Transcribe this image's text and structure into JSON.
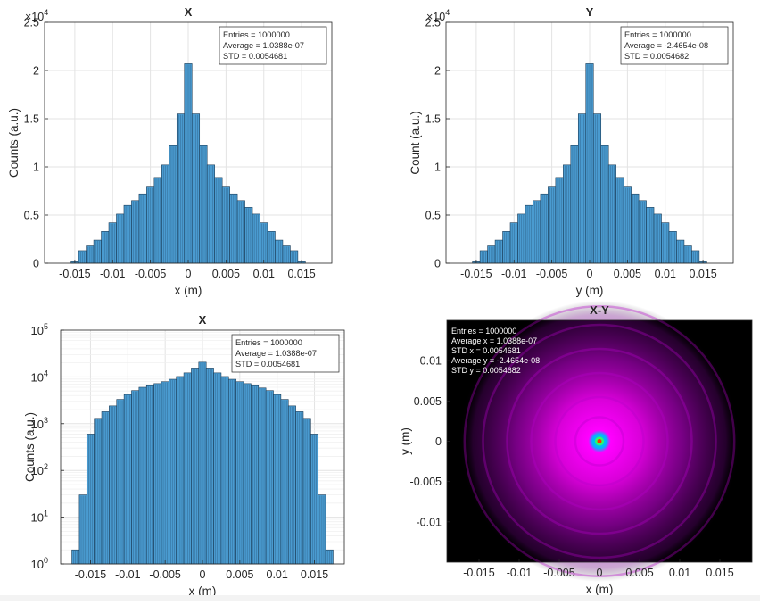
{
  "colors": {
    "bar_fill": "#4a9bd0",
    "bar_edge": "#1a3a55",
    "grid": "#e3e3e3",
    "axis": "#262626",
    "heat_bg": "#000000",
    "heat_halo": "#b400c8",
    "heat_core": "#ff00ff",
    "heat_center_cyan": "#00b4ff",
    "heat_center_green": "#30ff60",
    "heat_center_red": "#ff3000"
  },
  "chart_data": [
    {
      "type": "bar",
      "title": "X",
      "xlabel": "x (m)",
      "ylabel": "Counts (a.u.)",
      "exponent_label": "×10",
      "exponent_power": "4",
      "xlim": [
        -0.019,
        0.019
      ],
      "ylim": [
        0,
        25000
      ],
      "yscale": "linear",
      "grid": true,
      "xticks": [
        -0.015,
        -0.01,
        -0.005,
        0,
        0.005,
        0.01,
        0.015
      ],
      "xtick_labels": [
        "-0.015",
        "-0.01",
        "-0.005",
        "0",
        "0.005",
        "0.01",
        "0.015"
      ],
      "yticks": [
        0,
        5000,
        10000,
        15000,
        20000,
        25000
      ],
      "ytick_labels": [
        "0",
        "0.5",
        "1",
        "1.5",
        "2",
        "2.5"
      ],
      "legend_position": "top-right",
      "stats": [
        "Entries  =  1000000",
        "Average  =  1.0388e-07",
        "STD  =  0.0054681"
      ],
      "x": [
        -0.017,
        -0.016,
        -0.015,
        -0.014,
        -0.013,
        -0.012,
        -0.011,
        -0.01,
        -0.009,
        -0.008,
        -0.007,
        -0.006,
        -0.005,
        -0.004,
        -0.003,
        -0.002,
        -0.001,
        0.0,
        0.001,
        0.002,
        0.003,
        0.004,
        0.005,
        0.006,
        0.007,
        0.008,
        0.009,
        0.01,
        0.011,
        0.012,
        0.013,
        0.014,
        0.015,
        0.016,
        0.017
      ],
      "values": [
        2,
        10,
        150,
        1300,
        1800,
        2400,
        3300,
        4200,
        5100,
        6000,
        6500,
        7200,
        7900,
        8900,
        10200,
        12200,
        15500,
        20700,
        15500,
        12200,
        10200,
        8900,
        7900,
        7200,
        6500,
        5800,
        5100,
        4200,
        3300,
        2400,
        1800,
        1300,
        150,
        10,
        2
      ]
    },
    {
      "type": "bar",
      "title": "Y",
      "xlabel": "y (m)",
      "ylabel": "Count (a.u.)",
      "exponent_label": "×10",
      "exponent_power": "4",
      "xlim": [
        -0.019,
        0.019
      ],
      "ylim": [
        0,
        25000
      ],
      "yscale": "linear",
      "grid": true,
      "xticks": [
        -0.015,
        -0.01,
        -0.005,
        0,
        0.005,
        0.01,
        0.015
      ],
      "xtick_labels": [
        "-0.015",
        "-0.01",
        "-0.005",
        "0",
        "0.005",
        "0.01",
        "0.015"
      ],
      "yticks": [
        0,
        5000,
        10000,
        15000,
        20000,
        25000
      ],
      "ytick_labels": [
        "0",
        "0.5",
        "1",
        "1.5",
        "2",
        "2.5"
      ],
      "legend_position": "top-right",
      "stats": [
        "Entries  =  1000000",
        "Average  =  -2.4654e-08",
        "STD  =  0.0054682"
      ],
      "x": [
        -0.017,
        -0.016,
        -0.015,
        -0.014,
        -0.013,
        -0.012,
        -0.011,
        -0.01,
        -0.009,
        -0.008,
        -0.007,
        -0.006,
        -0.005,
        -0.004,
        -0.003,
        -0.002,
        -0.001,
        0.0,
        0.001,
        0.002,
        0.003,
        0.004,
        0.005,
        0.006,
        0.007,
        0.008,
        0.009,
        0.01,
        0.011,
        0.012,
        0.013,
        0.014,
        0.015,
        0.016,
        0.017
      ],
      "values": [
        2,
        10,
        150,
        1300,
        1800,
        2400,
        3300,
        4200,
        5100,
        6000,
        6500,
        7200,
        7900,
        8900,
        10200,
        12200,
        15500,
        20700,
        15500,
        12200,
        10200,
        8900,
        7900,
        7200,
        6500,
        5800,
        5100,
        4200,
        3300,
        2400,
        1800,
        1300,
        150,
        10,
        2
      ]
    },
    {
      "type": "bar",
      "title": "X",
      "xlabel": "x (m)",
      "ylabel": "Counts (a.u.)",
      "xlim": [
        -0.019,
        0.019
      ],
      "ylim": [
        1,
        100000
      ],
      "yscale": "log",
      "grid": true,
      "xticks": [
        -0.015,
        -0.01,
        -0.005,
        0,
        0.005,
        0.01,
        0.015
      ],
      "xtick_labels": [
        "-0.015",
        "-0.01",
        "-0.005",
        "0",
        "0.005",
        "0.01",
        "0.015"
      ],
      "yticks": [
        1,
        10,
        100,
        1000,
        10000,
        100000
      ],
      "ytick_labels": [
        [
          "10",
          "0"
        ],
        [
          "10",
          "1"
        ],
        [
          "10",
          "2"
        ],
        [
          "10",
          "3"
        ],
        [
          "10",
          "4"
        ],
        [
          "10",
          "5"
        ]
      ],
      "legend_position": "top-right",
      "stats": [
        "Entries  =  1000000",
        "Average  =  1.0388e-07",
        "STD  =  0.0054681"
      ],
      "x": [
        -0.017,
        -0.016,
        -0.015,
        -0.014,
        -0.013,
        -0.012,
        -0.011,
        -0.01,
        -0.009,
        -0.008,
        -0.007,
        -0.006,
        -0.005,
        -0.004,
        -0.003,
        -0.002,
        -0.001,
        0.0,
        0.001,
        0.002,
        0.003,
        0.004,
        0.005,
        0.006,
        0.007,
        0.008,
        0.009,
        0.01,
        0.011,
        0.012,
        0.013,
        0.014,
        0.015,
        0.016,
        0.017
      ],
      "values": [
        2,
        30,
        600,
        1300,
        1800,
        2400,
        3300,
        4200,
        5100,
        6000,
        6500,
        7200,
        7900,
        8900,
        10200,
        12200,
        15500,
        20700,
        15500,
        12200,
        10200,
        8900,
        7900,
        7200,
        6500,
        5800,
        5100,
        4200,
        3300,
        2400,
        1800,
        1300,
        600,
        30,
        2
      ]
    },
    {
      "type": "heatmap",
      "title": "X-Y",
      "xlabel": "x (m)",
      "ylabel": "y (m)",
      "xlim": [
        -0.019,
        0.019
      ],
      "ylim": [
        -0.015,
        0.015
      ],
      "grid": false,
      "xticks": [
        -0.015,
        -0.01,
        -0.005,
        0,
        0.005,
        0.01,
        0.015
      ],
      "xtick_labels": [
        "-0.015",
        "-0.01",
        "-0.005",
        "0",
        "0.005",
        "0.01",
        "0.015"
      ],
      "yticks": [
        0.01,
        0.005,
        0,
        -0.005,
        -0.01
      ],
      "ytick_labels": [
        "0.01",
        "0.005",
        "0",
        "-0.005",
        "-0.01"
      ],
      "legend_position": "top-left",
      "stats": [
        "Entries  =  1000000",
        "Average x  =  1.0388e-07",
        "STD x  =  0.0054681",
        "Average y  =  -2.4654e-08",
        "STD y  =  0.0054682"
      ],
      "radius_extent": 0.0175,
      "ring_radii": [
        0.003,
        0.0055,
        0.0085,
        0.0115,
        0.0145,
        0.0168
      ]
    }
  ]
}
